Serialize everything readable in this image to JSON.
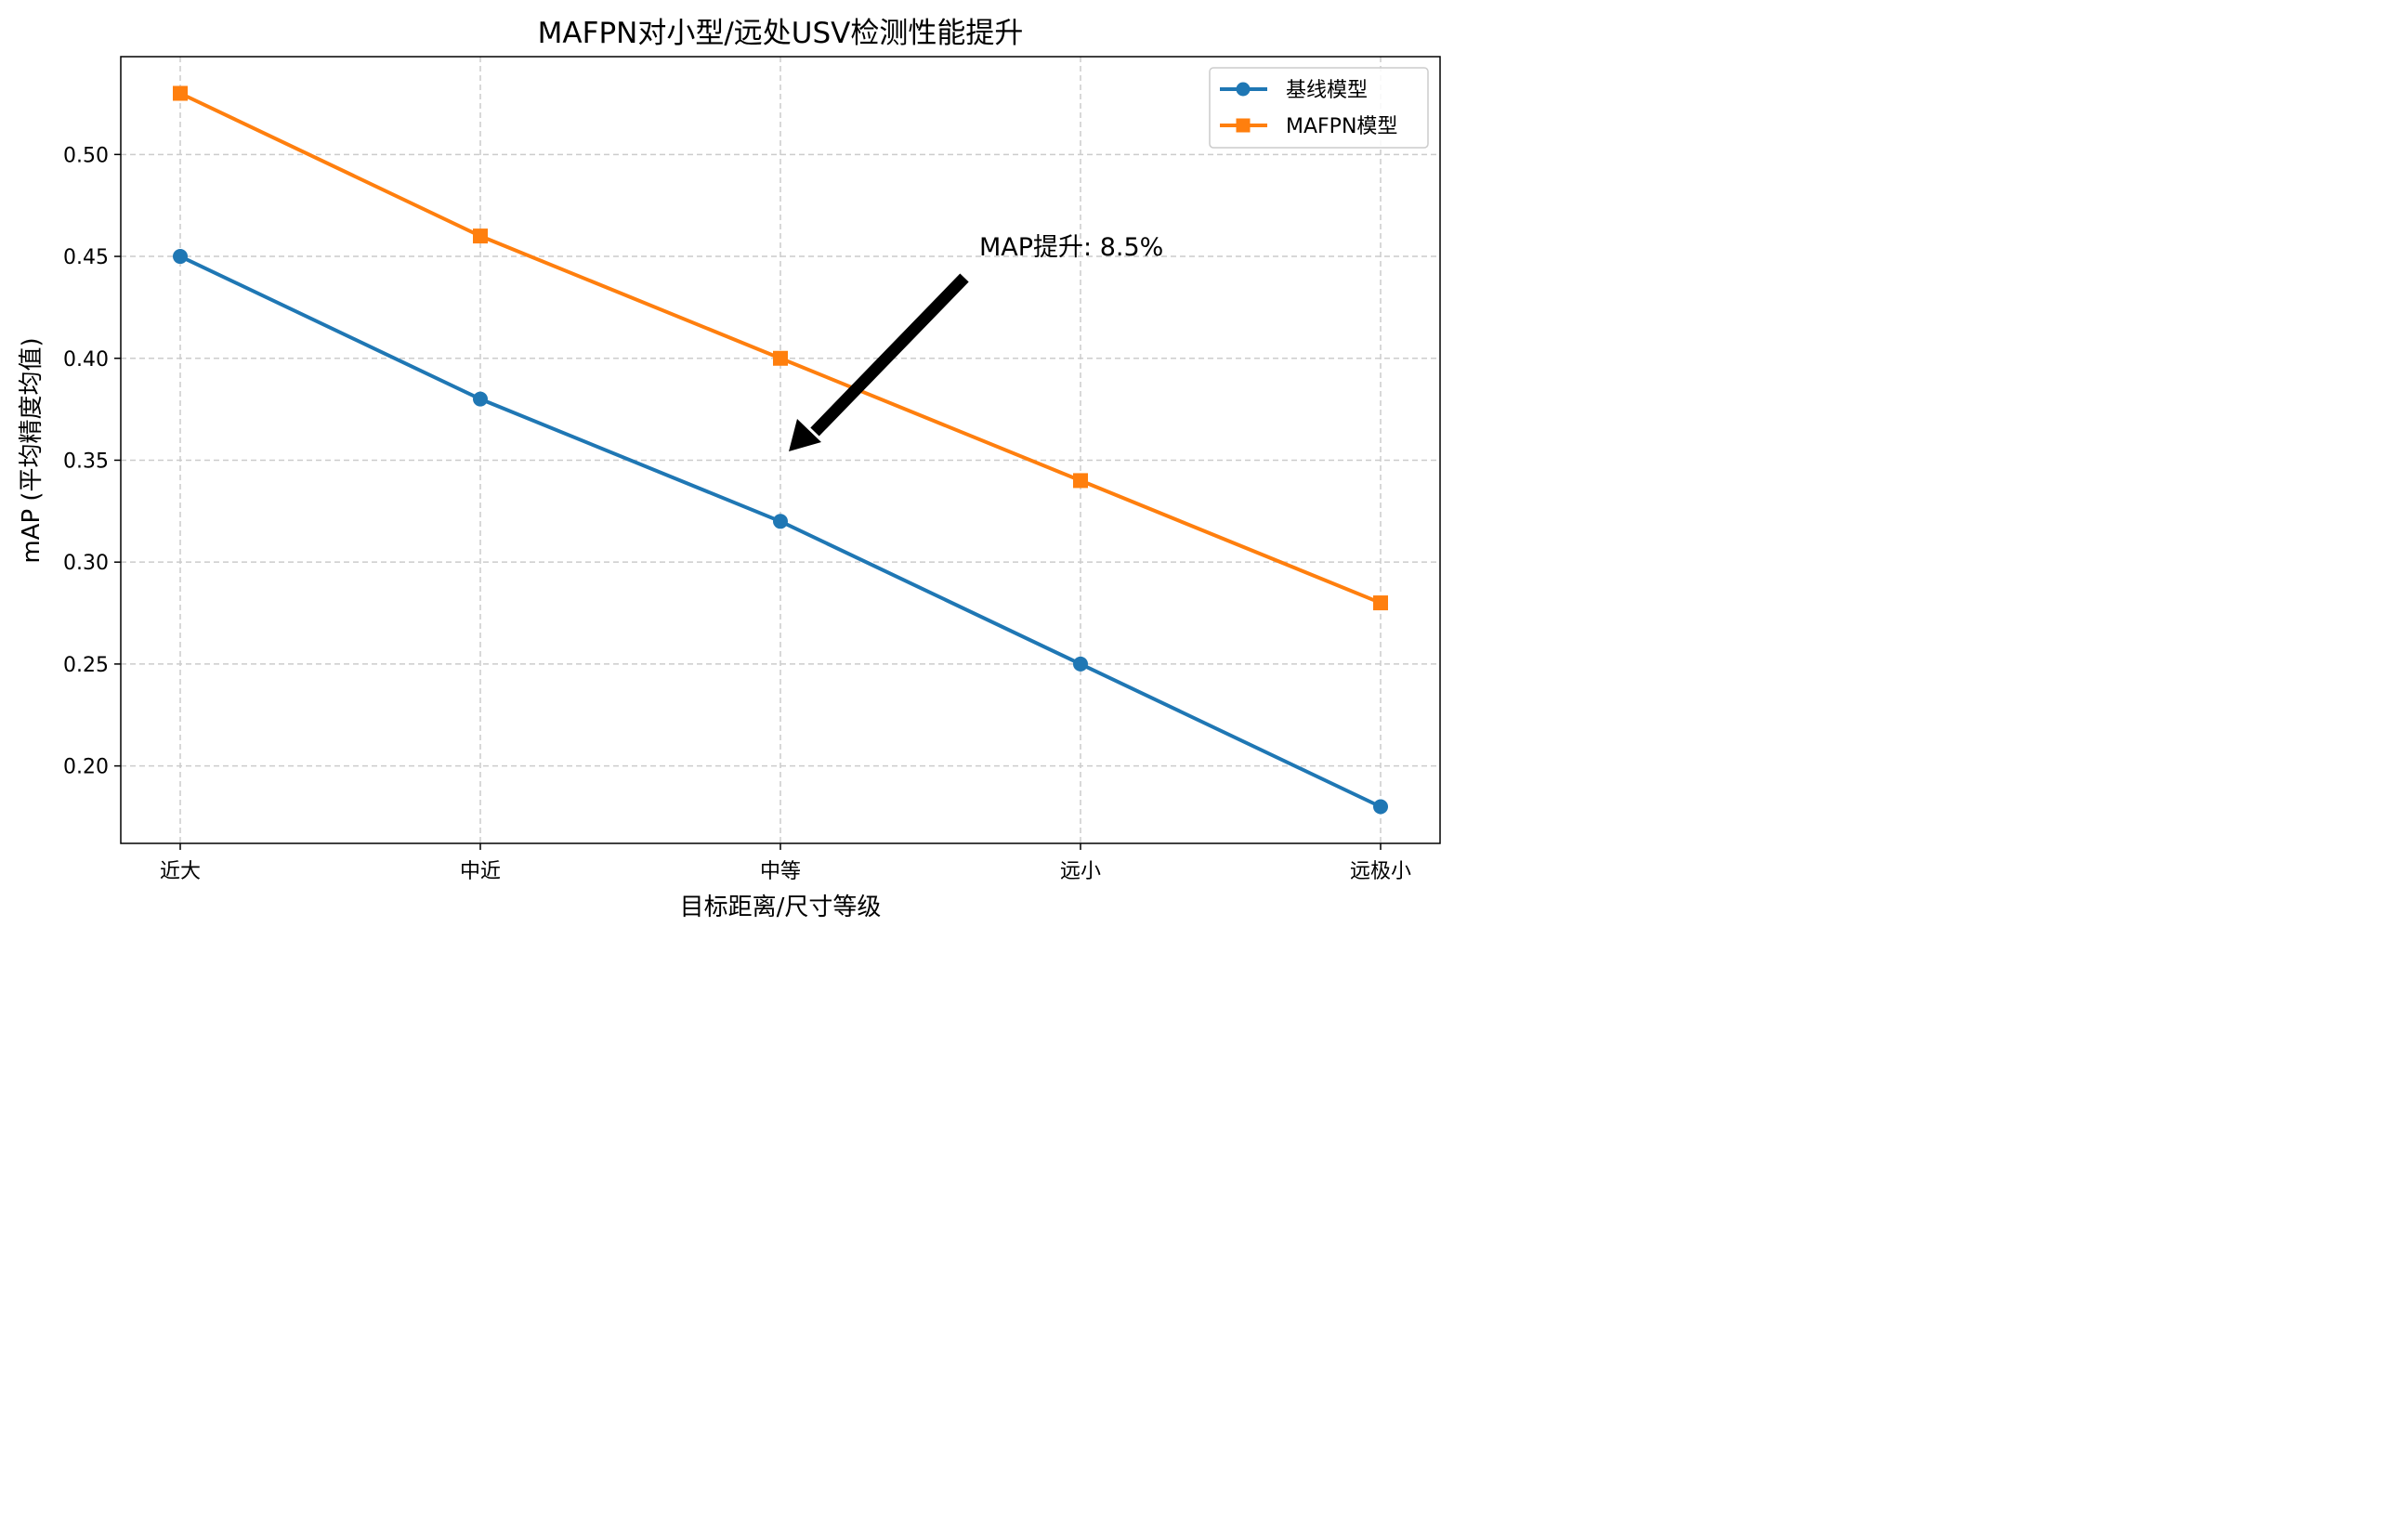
{
  "chart_data": {
    "type": "line",
    "title": "MAFPN对小型/远处USV检测性能提升",
    "xlabel": "目标距离/尺寸等级",
    "ylabel": "mAP (平均精度均值)",
    "categories": [
      "近大",
      "中近",
      "中等",
      "远小",
      "远极小"
    ],
    "series": [
      {
        "name": "基线模型",
        "values": [
          0.45,
          0.38,
          0.32,
          0.25,
          0.18
        ],
        "color": "#1f77b4",
        "marker": "circle"
      },
      {
        "name": "MAFPN模型",
        "values": [
          0.53,
          0.46,
          0.4,
          0.34,
          0.28
        ],
        "color": "#ff7f0e",
        "marker": "square"
      }
    ],
    "ylim": [
      0.162,
      0.548
    ],
    "yticks": [
      0.2,
      0.25,
      0.3,
      0.35,
      0.4,
      0.45,
      0.5
    ],
    "ytick_labels": [
      "0.20",
      "0.25",
      "0.30",
      "0.35",
      "0.40",
      "0.45",
      "0.50"
    ],
    "grid": true,
    "legend_position": "top-right",
    "annotation": {
      "text": "MAP提升: 8.5%",
      "points_to_category": "中等",
      "points_to_value": 0.355
    }
  }
}
